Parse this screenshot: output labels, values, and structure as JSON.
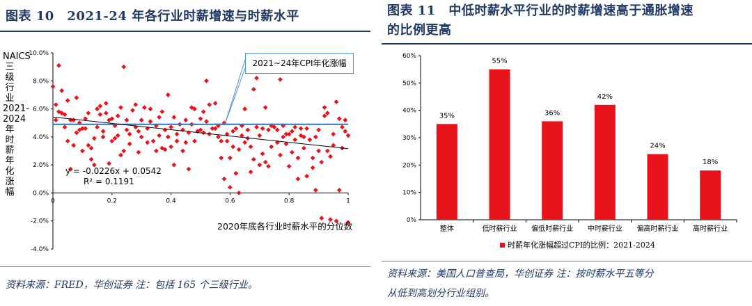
{
  "left": {
    "title": "图表 10　2021-24 年各行业时薪增速与时薪水平",
    "source": "资料来源：FRED，华创证券 注：包括 165 个三级行业。"
  },
  "right": {
    "title_line1": "图表 11　中低时薪水平行业的时薪增速高于通胀增速",
    "title_line2": "的比例更高",
    "source_line1": "资料来源：美国人口普查局，华创证券 注：按时薪水平五等分",
    "source_line2": "从低到高划分行业组别。"
  },
  "chart_data": [
    {
      "type": "scatter",
      "ylabel": "NAICS三级行业2021-2024年时薪年化涨幅",
      "xlabel": "2020年底各行业时薪水平的分位数",
      "xlim": [
        0,
        1
      ],
      "ylim": [
        -0.04,
        0.1
      ],
      "x_ticks": [
        "0",
        "0.2",
        "0.4",
        "0.6",
        "0.8",
        "1"
      ],
      "y_ticks": [
        "-4.0%",
        "-2.0%",
        "0.0%",
        "2.0%",
        "4.0%",
        "6.0%",
        "8.0%",
        "10.0%"
      ],
      "reference_line": {
        "label": "2021~24年CPI年化涨幅",
        "y": 0.049,
        "color": "#2e75b6"
      },
      "trendline": {
        "equation": "y = -0.0226x + 0.0542",
        "r2": "R² = 0.1191",
        "slope": -0.0226,
        "intercept": 0.0542
      },
      "marker_color": "#e8141c",
      "points": [
        [
          0.0,
          0.076
        ],
        [
          0.01,
          0.063
        ],
        [
          0.01,
          0.052
        ],
        [
          0.02,
          0.058
        ],
        [
          0.02,
          0.091
        ],
        [
          0.03,
          0.057
        ],
        [
          0.03,
          0.073
        ],
        [
          0.04,
          0.047
        ],
        [
          0.04,
          0.056
        ],
        [
          0.05,
          0.037
        ],
        [
          0.05,
          0.066
        ],
        [
          0.06,
          0.052
        ],
        [
          0.06,
          0.017
        ],
        [
          0.07,
          0.034
        ],
        [
          0.07,
          0.052
        ],
        [
          0.08,
          0.043
        ],
        [
          0.08,
          0.068
        ],
        [
          0.09,
          0.045
        ],
        [
          0.09,
          0.05
        ],
        [
          0.1,
          0.03
        ],
        [
          0.1,
          0.046
        ],
        [
          0.11,
          0.046
        ],
        [
          0.11,
          0.053
        ],
        [
          0.12,
          0.057
        ],
        [
          0.12,
          0.034
        ],
        [
          0.13,
          0.032
        ],
        [
          0.13,
          0.024
        ],
        [
          0.14,
          0.02
        ],
        [
          0.14,
          0.039
        ],
        [
          0.15,
          0.06
        ],
        [
          0.15,
          0.047
        ],
        [
          0.16,
          0.062
        ],
        [
          0.16,
          0.056
        ],
        [
          0.17,
          0.044
        ],
        [
          0.17,
          0.04
        ],
        [
          0.18,
          0.064
        ],
        [
          0.18,
          0.057
        ],
        [
          0.19,
          0.021
        ],
        [
          0.19,
          0.052
        ],
        [
          0.2,
          0.037
        ],
        [
          0.2,
          0.053
        ],
        [
          0.21,
          0.039
        ],
        [
          0.21,
          0.048
        ],
        [
          0.22,
          0.041
        ],
        [
          0.22,
          0.055
        ],
        [
          0.23,
          0.027
        ],
        [
          0.23,
          0.061
        ],
        [
          0.24,
          0.03
        ],
        [
          0.24,
          0.09
        ],
        [
          0.25,
          0.052
        ],
        [
          0.25,
          0.045
        ],
        [
          0.26,
          0.035
        ],
        [
          0.26,
          0.042
        ],
        [
          0.27,
          0.059
        ],
        [
          0.28,
          0.063
        ],
        [
          0.28,
          0.047
        ],
        [
          0.29,
          0.029
        ],
        [
          0.29,
          0.044
        ],
        [
          0.3,
          0.052
        ],
        [
          0.3,
          0.04
        ],
        [
          0.31,
          0.061
        ],
        [
          0.32,
          0.046
        ],
        [
          0.32,
          0.036
        ],
        [
          0.33,
          0.051
        ],
        [
          0.33,
          0.06
        ],
        [
          0.34,
          0.037
        ],
        [
          0.35,
          0.03
        ],
        [
          0.35,
          0.048
        ],
        [
          0.36,
          0.041
        ],
        [
          0.36,
          0.054
        ],
        [
          0.37,
          0.032
        ],
        [
          0.37,
          0.058
        ],
        [
          0.38,
          0.031
        ],
        [
          0.38,
          0.045
        ],
        [
          0.39,
          0.04
        ],
        [
          0.39,
          0.07
        ],
        [
          0.4,
          0.033
        ],
        [
          0.4,
          0.047
        ],
        [
          0.41,
          0.054
        ],
        [
          0.41,
          0.02
        ],
        [
          0.42,
          0.042
        ],
        [
          0.42,
          0.037
        ],
        [
          0.43,
          0.049
        ],
        [
          0.44,
          0.03
        ],
        [
          0.44,
          0.045
        ],
        [
          0.45,
          0.036
        ],
        [
          0.45,
          0.052
        ],
        [
          0.46,
          0.017
        ],
        [
          0.46,
          0.043
        ],
        [
          0.47,
          0.061
        ],
        [
          0.47,
          0.049
        ],
        [
          0.48,
          0.06
        ],
        [
          0.48,
          0.037
        ],
        [
          0.49,
          0.044
        ],
        [
          0.5,
          0.045
        ],
        [
          0.5,
          0.053
        ],
        [
          0.51,
          0.043
        ],
        [
          0.51,
          0.058
        ],
        [
          0.52,
          0.051
        ],
        [
          0.52,
          0.08
        ],
        [
          0.53,
          0.063
        ],
        [
          0.53,
          0.042
        ],
        [
          0.54,
          0.046
        ],
        [
          0.55,
          0.064
        ],
        [
          0.55,
          0.046
        ],
        [
          0.56,
          0.04
        ],
        [
          0.56,
          0.048
        ],
        [
          0.57,
          0.037
        ],
        [
          0.57,
          0.025
        ],
        [
          0.58,
          0.05
        ],
        [
          0.58,
          0.01
        ],
        [
          0.59,
          0.037
        ],
        [
          0.59,
          0.042
        ],
        [
          0.6,
          0.025
        ],
        [
          0.6,
          0.004
        ],
        [
          0.61,
          0.044
        ],
        [
          0.61,
          0.033
        ],
        [
          0.62,
          0.014
        ],
        [
          0.62,
          0.046
        ],
        [
          0.63,
          0.0
        ],
        [
          0.63,
          0.031
        ],
        [
          0.64,
          0.041
        ],
        [
          0.64,
          0.048
        ],
        [
          0.65,
          0.06
        ],
        [
          0.65,
          0.036
        ],
        [
          0.66,
          0.039
        ],
        [
          0.66,
          0.045
        ],
        [
          0.67,
          0.015
        ],
        [
          0.67,
          0.033
        ],
        [
          0.68,
          0.024
        ],
        [
          0.68,
          0.074
        ],
        [
          0.69,
          0.047
        ],
        [
          0.69,
          0.082
        ],
        [
          0.7,
          0.02
        ],
        [
          0.7,
          0.041
        ],
        [
          0.71,
          0.046
        ],
        [
          0.71,
          0.028
        ],
        [
          0.72,
          0.061
        ],
        [
          0.72,
          0.022
        ],
        [
          0.73,
          0.045
        ],
        [
          0.73,
          0.019
        ],
        [
          0.74,
          0.048
        ],
        [
          0.74,
          0.033
        ],
        [
          0.75,
          0.047
        ],
        [
          0.76,
          0.036
        ],
        [
          0.76,
          0.045
        ],
        [
          0.77,
          0.081
        ],
        [
          0.77,
          0.027
        ],
        [
          0.78,
          0.04
        ],
        [
          0.78,
          0.048
        ],
        [
          0.79,
          0.042
        ],
        [
          0.79,
          0.035
        ],
        [
          0.8,
          0.019
        ],
        [
          0.8,
          0.042
        ],
        [
          0.81,
          0.044
        ],
        [
          0.81,
          0.029
        ],
        [
          0.82,
          0.038
        ],
        [
          0.82,
          0.047
        ],
        [
          0.83,
          0.025
        ],
        [
          0.83,
          0.01
        ],
        [
          0.84,
          0.041
        ],
        [
          0.84,
          0.046
        ],
        [
          0.85,
          0.032
        ],
        [
          0.85,
          0.04
        ],
        [
          0.86,
          0.012
        ],
        [
          0.86,
          0.046
        ],
        [
          0.87,
          0.038
        ],
        [
          0.88,
          0.025
        ],
        [
          0.88,
          0.018
        ],
        [
          0.89,
          0.002
        ],
        [
          0.89,
          0.04
        ],
        [
          0.9,
          0.03
        ],
        [
          0.9,
          0.045
        ],
        [
          0.91,
          0.022
        ],
        [
          0.91,
          -0.018
        ],
        [
          0.92,
          0.061
        ],
        [
          0.92,
          0.055
        ],
        [
          0.93,
          0.057
        ],
        [
          0.93,
          0.03
        ],
        [
          0.94,
          0.026
        ],
        [
          0.94,
          -0.019
        ],
        [
          0.95,
          0.034
        ],
        [
          0.95,
          0.042
        ],
        [
          0.96,
          0.065
        ],
        [
          0.96,
          -0.02
        ],
        [
          0.97,
          0.053
        ],
        [
          0.97,
          0.002
        ],
        [
          0.98,
          0.047
        ],
        [
          0.98,
          0.032
        ],
        [
          0.99,
          0.052
        ],
        [
          0.99,
          0.044
        ],
        [
          1.0,
          0.041
        ],
        [
          1.0,
          -0.021
        ]
      ]
    },
    {
      "type": "bar",
      "categories": [
        "整体",
        "低时薪行业",
        "偏低时薪行业",
        "中时薪行业",
        "偏高时薪行业",
        "高时薪行业"
      ],
      "values": [
        35,
        55,
        36,
        42,
        24,
        18
      ],
      "value_labels": [
        "35%",
        "55%",
        "36%",
        "42%",
        "24%",
        "18%"
      ],
      "ylim": [
        0,
        60
      ],
      "y_ticks": [
        "0%",
        "10%",
        "20%",
        "30%",
        "40%",
        "50%",
        "60%"
      ],
      "legend": "时薪年化涨幅超过CPI的比例：2021-2024",
      "bar_color": "#e8141c"
    }
  ]
}
